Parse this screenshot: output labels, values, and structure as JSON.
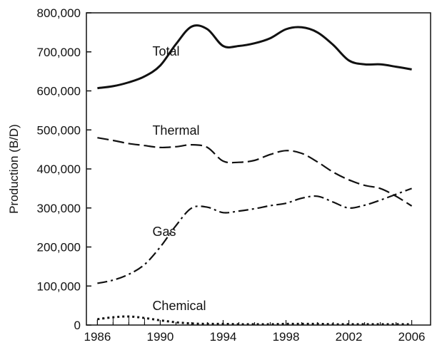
{
  "chart_data": {
    "type": "line",
    "title": "",
    "xlabel": "",
    "ylabel": "Production (B/D)",
    "xlim": [
      1985.3,
      2007.2
    ],
    "ylim": [
      0,
      800000
    ],
    "grid": false,
    "legend": "none",
    "x_ticks": [
      1986,
      1990,
      1994,
      1998,
      2002,
      2006
    ],
    "x_tick_labels": [
      "1986",
      "1990",
      "1994",
      "1998",
      "2002",
      "2006"
    ],
    "y_ticks": [
      0,
      100000,
      200000,
      300000,
      400000,
      500000,
      600000,
      700000,
      800000
    ],
    "y_tick_labels": [
      "0",
      "100,000",
      "200,000",
      "300,000",
      "400,000",
      "500,000",
      "600,000",
      "700,000",
      "800,000"
    ],
    "series": [
      {
        "name": "Total",
        "label_at": [
          1989.5,
          690000
        ],
        "dash": "solid",
        "x": [
          1986,
          1987,
          1988,
          1989,
          1990,
          1991,
          1992,
          1993,
          1994,
          1995,
          1996,
          1997,
          1998,
          1999,
          2000,
          2001,
          2002,
          2003,
          2004,
          2005,
          2006
        ],
        "values": [
          607000,
          612000,
          622000,
          637000,
          665000,
          720000,
          765000,
          758000,
          715000,
          715000,
          722000,
          735000,
          758000,
          763000,
          750000,
          718000,
          678000,
          668000,
          668000,
          662000,
          655000
        ]
      },
      {
        "name": "Thermal",
        "label_at": [
          1989.5,
          488000
        ],
        "dash": "dashed",
        "x": [
          1986,
          1987,
          1988,
          1989,
          1990,
          1991,
          1992,
          1993,
          1994,
          1995,
          1996,
          1997,
          1998,
          1999,
          2000,
          2001,
          2002,
          2003,
          2004,
          2005,
          2006
        ],
        "values": [
          480000,
          473000,
          465000,
          460000,
          455000,
          457000,
          462000,
          455000,
          420000,
          417000,
          422000,
          437000,
          447000,
          440000,
          418000,
          392000,
          372000,
          358000,
          350000,
          330000,
          305000
        ]
      },
      {
        "name": "Gas",
        "label_at": [
          1989.5,
          228000
        ],
        "dash": "dashdot",
        "x": [
          1986,
          1987,
          1988,
          1989,
          1990,
          1991,
          1992,
          1993,
          1994,
          1995,
          1996,
          1997,
          1998,
          1999,
          2000,
          2001,
          2002,
          2003,
          2004,
          2005,
          2006
        ],
        "values": [
          107000,
          115000,
          130000,
          155000,
          200000,
          255000,
          300000,
          302000,
          288000,
          292000,
          298000,
          306000,
          312000,
          325000,
          330000,
          315000,
          300000,
          307000,
          320000,
          335000,
          350000
        ]
      },
      {
        "name": "Chemical",
        "label_at": [
          1989.5,
          38000
        ],
        "dash": "dotted",
        "x": [
          1986,
          1987,
          1988,
          1989,
          1990,
          1991,
          1992,
          1993,
          1994,
          1995,
          1996,
          1997,
          1998,
          1999,
          2000,
          2001,
          2002,
          2003,
          2004,
          2005,
          2006
        ],
        "values": [
          15000,
          20000,
          22000,
          18000,
          12000,
          7000,
          4000,
          3000,
          3000,
          2000,
          2000,
          2000,
          3000,
          3000,
          3000,
          2000,
          2000,
          2000,
          2000,
          2000,
          2000
        ]
      }
    ]
  }
}
